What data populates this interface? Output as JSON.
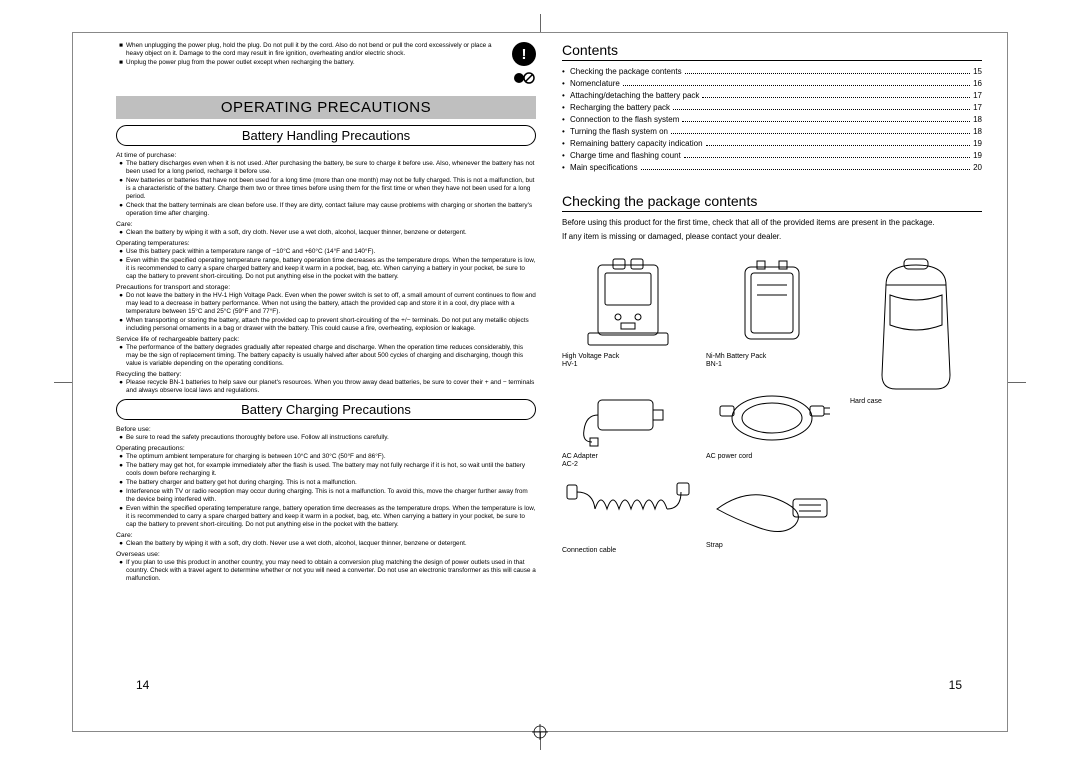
{
  "colors": {
    "frame": "#888888",
    "banner_bg": "#bfbfbf",
    "text": "#000000",
    "line": "#000000"
  },
  "left": {
    "top_bullets": [
      "When unplugging the power plug, hold the plug. Do not pull it by the cord. Also do not bend or pull the cord excessively or place a heavy object on it. Damage to the cord may result in fire ignition, overheating and/or electric shock.",
      "Unplug the power plug from the power outlet except when recharging the battery."
    ],
    "banner": "OPERATING PRECAUTIONS",
    "pill1": "Battery Handling Precautions",
    "sec1": {
      "h1": "At time of purchase:",
      "b1": [
        "The battery discharges even when it is not used. After purchasing the battery, be sure to charge it before use. Also, whenever the battery has not been used for a long period, recharge it before use.",
        "New batteries or batteries that have not been used for a long time (more than one month) may not be fully charged. This is not a malfunction, but is a characteristic of the battery. Charge them two or three times before using them for the first time or when they have not been used for a long period.",
        "Check that the battery terminals are clean before use. If they are dirty, contact failure may cause problems with charging or shorten the battery's operation time after charging."
      ],
      "h2": "Care:",
      "b2": [
        "Clean the battery by wiping it with a soft, dry cloth. Never use a wet cloth, alcohol, lacquer thinner, benzene or detergent."
      ],
      "h3": "Operating temperatures:",
      "b3": [
        "Use this battery pack within a temperature range of −10°C and +60°C (14°F and 140°F).",
        "Even within the specified operating temperature range, battery operation time decreases as the temperature drops. When the temperature is low, it is recommended to carry a spare charged battery and keep it warm in a pocket, bag, etc. When carrying a battery in your pocket, be sure to cap the battery to prevent short-circuiting. Do not put anything else in the pocket with the battery."
      ],
      "h4": "Precautions for transport and storage:",
      "b4": [
        "Do not leave the battery in the HV-1 High Voltage Pack. Even when the power switch is set to off, a small amount of current continues to flow and may lead to a decrease in battery performance. When not using the battery, attach the provided cap and store it in a cool, dry place with a temperature between 15°C and 25°C (59°F and 77°F).",
        "When transporting or storing the battery, attach the provided cap to prevent short-circuiting of the +/− terminals. Do not put any metallic objects including personal ornaments in a bag or drawer with the battery. This could cause a fire, overheating, explosion or leakage."
      ],
      "h5": "Service life of rechargeable battery pack:",
      "b5": [
        "The performance of the battery degrades gradually after repeated charge and discharge. When the operation time reduces considerably, this may be the sign of replacement timing. The battery capacity is usually halved after about 500 cycles of charging and discharging, though this value is variable depending on the operating conditions."
      ],
      "h6": "Recycling the battery:",
      "b6": [
        "Please recycle BN-1 batteries to help save our planet's resources. When you throw away dead batteries, be sure to cover their + and − terminals and always observe local laws and regulations."
      ]
    },
    "pill2": "Battery Charging Precautions",
    "sec2": {
      "h1": "Before use:",
      "b1": [
        "Be sure to read the safety precautions thoroughly before use. Follow all instructions carefully."
      ],
      "h2": "Operating precautions:",
      "b2": [
        "The optimum ambient temperature for charging is between 10°C and 30°C (50°F and 86°F).",
        "The battery may get hot, for example immediately after the flash is used. The battery may not fully recharge if it is hot, so wait until the battery cools down before recharging it.",
        "The battery charger and battery get hot during charging. This is not a malfunction.",
        "Interference with TV or radio reception may occur during charging. This is not a malfunction. To avoid this, move the charger further away from the device being interfered with.",
        "Even within the specified operating temperature range, battery operation time decreases as the temperature drops. When the temperature is low, it is recommended to carry a spare charged battery and keep it warm in a pocket, bag, etc. When carrying a battery in your pocket, be sure to cap the battery to prevent short-circuiting. Do not put anything else in the pocket with the battery."
      ],
      "h3": "Care:",
      "b3": [
        "Clean the battery by wiping it with a soft, dry cloth. Never use a wet cloth, alcohol, lacquer thinner, benzene or detergent."
      ],
      "h4": "Overseas use:",
      "b4": [
        "If you plan to use this product in another country, you may need to obtain a conversion plug matching the design of power outlets used in that country. Check with a travel agent to determine whether or not you will need a converter. Do not use an electronic transformer as this will cause a malfunction."
      ]
    },
    "pageno": "14"
  },
  "right": {
    "contents_title": "Contents",
    "toc": [
      {
        "label": "Checking the package contents",
        "page": "15"
      },
      {
        "label": "Nomenclature",
        "page": "16"
      },
      {
        "label": "Attaching/detaching the battery pack",
        "page": "17"
      },
      {
        "label": "Recharging the battery pack",
        "page": "17"
      },
      {
        "label": "Connection to the flash system",
        "page": "18"
      },
      {
        "label": "Turning the flash system on",
        "page": "18"
      },
      {
        "label": "Remaining battery capacity indication",
        "page": "19"
      },
      {
        "label": "Charge time and flashing count",
        "page": "19"
      },
      {
        "label": "Main specifications",
        "page": "20"
      }
    ],
    "check_title": "Checking the package contents",
    "check_body1": "Before using this product for the first time, check that all of the provided items are present in the package.",
    "check_body2": "If any item is missing or damaged, please contact your dealer.",
    "items": [
      {
        "label": "High Voltage Pack\nHV-1"
      },
      {
        "label": "Ni-Mh Battery Pack\nBN-1"
      },
      {
        "label": ""
      },
      {
        "label": "AC Adapter\nAC-2"
      },
      {
        "label": "AC power cord"
      },
      {
        "label": ""
      },
      {
        "label": "Connection cable"
      },
      {
        "label": "Strap"
      },
      {
        "label": "Hard case"
      }
    ],
    "pageno": "15"
  }
}
